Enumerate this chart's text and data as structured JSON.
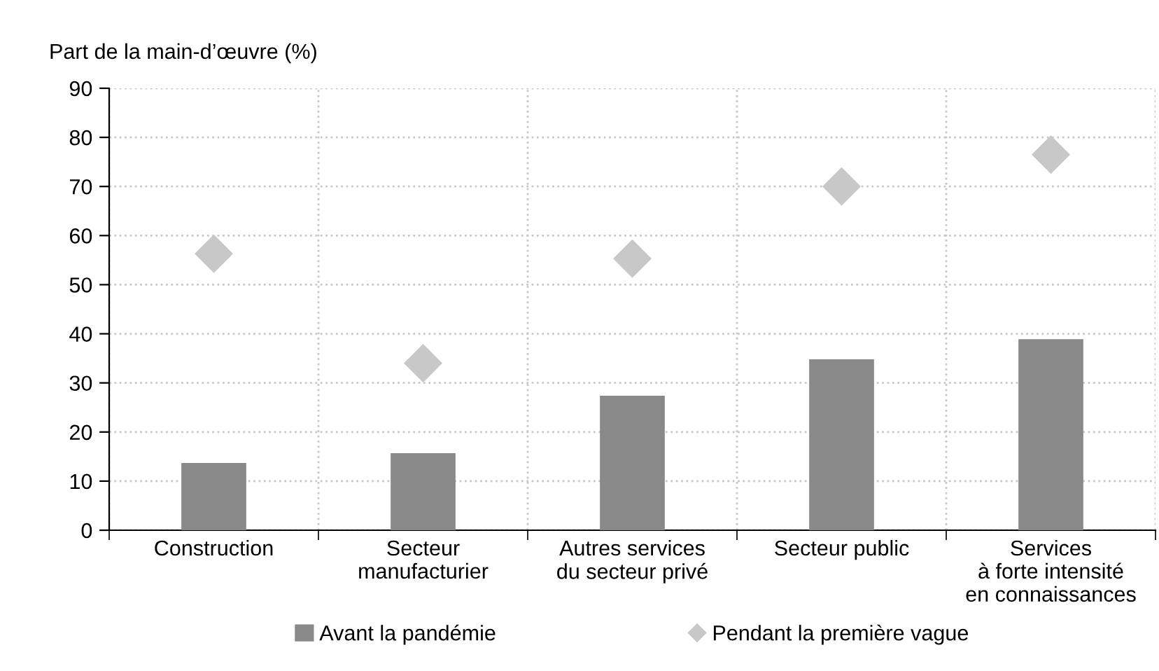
{
  "chart_data": {
    "type": "bar",
    "ylabel": "Part de la main-d’œuvre (%)",
    "categories": [
      "Construction",
      "Secteur\nmanufacturier",
      "Autres services\ndu secteur privé",
      "Secteur public",
      "Services\nà forte intensité\nen connaissances"
    ],
    "series": [
      {
        "name": "Avant la pandémie",
        "color": "#898989",
        "values": [
          13.7,
          15.7,
          27.4,
          34.8,
          38.9
        ]
      },
      {
        "name": "Pendant la première vague",
        "type": "scatter",
        "color": "#c8c8c8",
        "marker": "diamond",
        "values": [
          56.3,
          34.0,
          55.3,
          70.0,
          76.5
        ]
      }
    ],
    "ylim": [
      0,
      90
    ],
    "yticks": [
      0,
      10,
      20,
      30,
      40,
      50,
      60,
      70,
      80,
      90
    ],
    "grid": true,
    "legend": "bottom"
  }
}
